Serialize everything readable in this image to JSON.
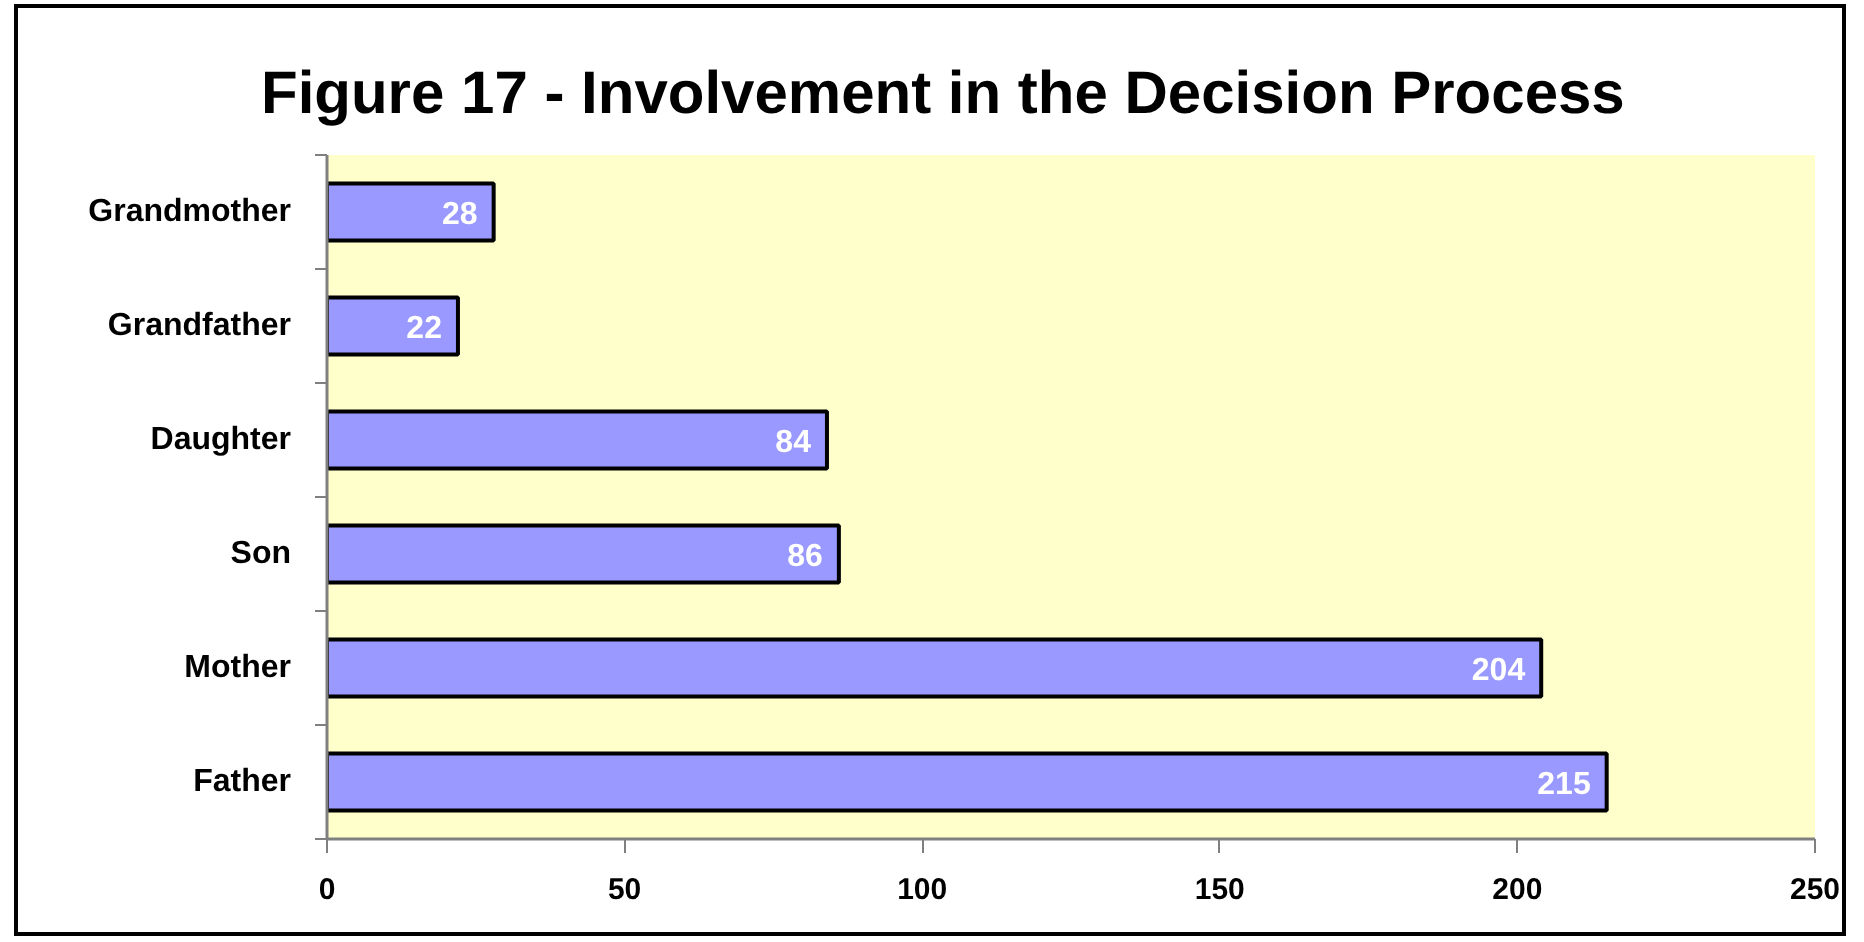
{
  "chart_data": {
    "type": "bar",
    "orientation": "horizontal",
    "title": "Figure 17 - Involvement in the Decision Process",
    "categories": [
      "Grandmother",
      "Grandfather",
      "Daughter",
      "Son",
      "Mother",
      "Father"
    ],
    "values": [
      28,
      22,
      84,
      86,
      204,
      215
    ],
    "color": "#9999ff",
    "xlim": [
      0,
      250
    ],
    "xticks": [
      0,
      50,
      100,
      150,
      200,
      250
    ],
    "data_labels": true,
    "grid": false
  }
}
